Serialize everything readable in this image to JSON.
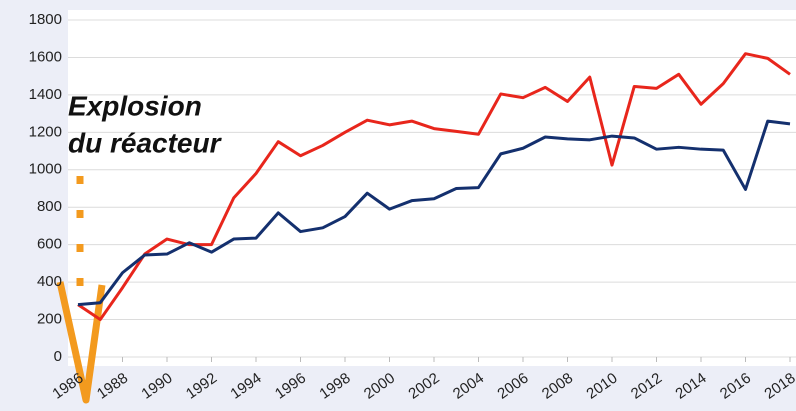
{
  "chart_data": {
    "type": "line",
    "x": [
      1986,
      1987,
      1988,
      1989,
      1990,
      1991,
      1992,
      1993,
      1994,
      1995,
      1996,
      1997,
      1998,
      1999,
      2000,
      2001,
      2002,
      2003,
      2004,
      2005,
      2006,
      2007,
      2008,
      2009,
      2010,
      2011,
      2012,
      2013,
      2014,
      2015,
      2016,
      2017,
      2018
    ],
    "series": [
      {
        "color": "#e8261c",
        "values": [
          280,
          200,
          370,
          550,
          630,
          600,
          600,
          850,
          980,
          1150,
          1075,
          1130,
          1200,
          1265,
          1240,
          1260,
          1220,
          1205,
          1190,
          1405,
          1385,
          1440,
          1365,
          1495,
          1025,
          1445,
          1435,
          1510,
          1350,
          1460,
          1620,
          1595,
          1510
        ]
      },
      {
        "color": "#14306e",
        "values": [
          280,
          290,
          450,
          545,
          550,
          610,
          560,
          630,
          635,
          770,
          670,
          690,
          750,
          875,
          790,
          835,
          845,
          900,
          905,
          1085,
          1115,
          1175,
          1165,
          1160,
          1180,
          1170,
          1110,
          1120,
          1110,
          1105,
          895,
          1260,
          1245
        ]
      }
    ],
    "xlim": [
      1986,
      2018
    ],
    "xticks": [
      1986,
      1988,
      1990,
      1992,
      1994,
      1996,
      1998,
      2000,
      2002,
      2004,
      2006,
      2008,
      2010,
      2012,
      2014,
      2016,
      2018
    ],
    "ylim": [
      0,
      1800
    ],
    "yticks": [
      0,
      200,
      400,
      600,
      800,
      1000,
      1200,
      1400,
      1600,
      1800
    ],
    "grid": true,
    "annotation": [
      "Explosion",
      "du réacteur"
    ]
  }
}
